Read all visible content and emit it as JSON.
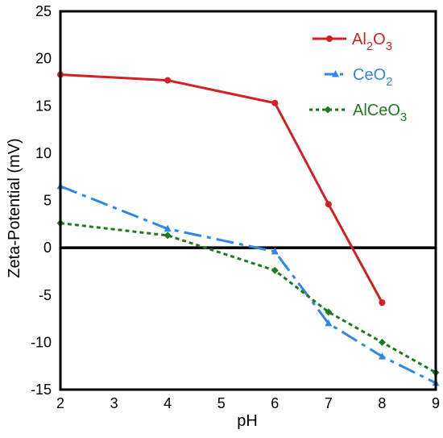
{
  "chart_data": {
    "type": "line",
    "title": "",
    "xlabel": "pH",
    "ylabel": "Zeta-Potential (mV)",
    "xlim": [
      2,
      9
    ],
    "ylim": [
      -15,
      25
    ],
    "xticks": [
      2,
      3,
      4,
      5,
      6,
      7,
      8,
      9
    ],
    "yticks": [
      -15,
      -10,
      -5,
      0,
      5,
      10,
      15,
      20,
      25
    ],
    "grid": false,
    "legend_position": "top-right",
    "series": [
      {
        "name": "Al2O3",
        "legend_main": "Al",
        "legend_subs": [
          "2",
          "O",
          "3"
        ],
        "color": "#d42020",
        "marker": "circle",
        "line_style": "solid",
        "points": [
          [
            2,
            18.3
          ],
          [
            4,
            17.7
          ],
          [
            6,
            15.3
          ],
          [
            7,
            4.6
          ],
          [
            8,
            -5.8
          ]
        ]
      },
      {
        "name": "CeO2",
        "legend_main": "CeO",
        "legend_subs": [
          "2"
        ],
        "color": "#2e86f0",
        "marker": "triangle",
        "line_style": "dashdot",
        "points": [
          [
            2,
            6.5
          ],
          [
            4,
            2.0
          ],
          [
            6,
            -0.4
          ],
          [
            7,
            -8.0
          ],
          [
            8,
            -11.5
          ],
          [
            9,
            -14.3
          ]
        ]
      },
      {
        "name": "AlCeO3",
        "legend_main": "AlCeO",
        "legend_subs": [
          "3"
        ],
        "color": "#1e7a1e",
        "marker": "diamond",
        "line_style": "dotted",
        "points": [
          [
            2,
            2.6
          ],
          [
            4,
            1.3
          ],
          [
            6,
            -2.4
          ],
          [
            7,
            -6.8
          ],
          [
            8,
            -10.0
          ],
          [
            9,
            -13.2
          ]
        ]
      }
    ]
  }
}
